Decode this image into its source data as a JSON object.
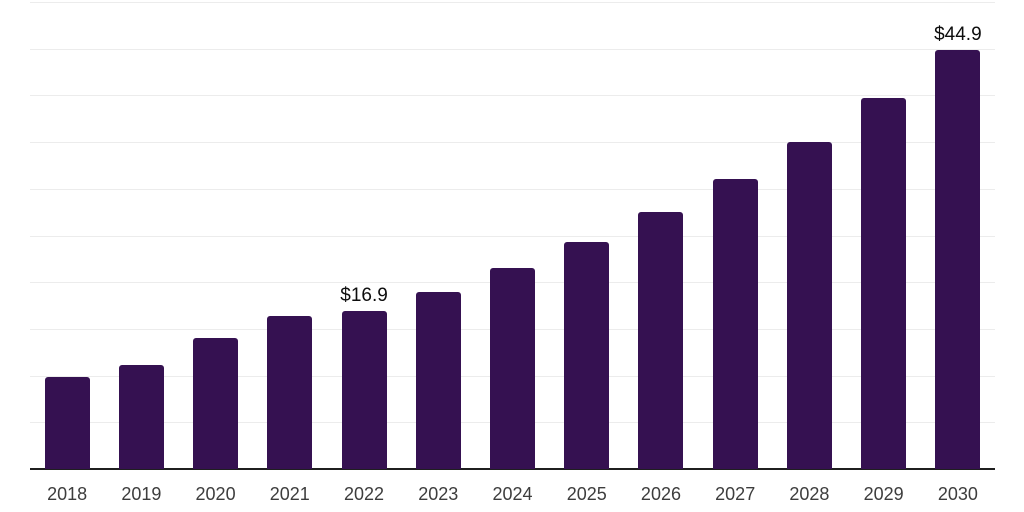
{
  "chart_data": {
    "type": "bar",
    "title": "",
    "xlabel": "",
    "ylabel": "",
    "categories": [
      "2018",
      "2019",
      "2020",
      "2021",
      "2022",
      "2023",
      "2024",
      "2025",
      "2026",
      "2027",
      "2028",
      "2029",
      "2030"
    ],
    "values": [
      9.8,
      11.1,
      14.0,
      16.4,
      16.9,
      18.9,
      21.5,
      24.3,
      27.5,
      31.0,
      35.0,
      39.7,
      44.9
    ],
    "value_labels": [
      {
        "category": "2022",
        "text": "$16.9"
      },
      {
        "category": "2030",
        "text": "$44.9"
      }
    ],
    "ylim": [
      0,
      50
    ],
    "gridline_step": 5,
    "grid": "horizontal-only",
    "y_axis_tick_labels": "none",
    "legend": "none",
    "colors": {
      "bar": "#351151",
      "gridline": "#ececec",
      "axis_line": "#1f1f1f",
      "tick_label": "#3d3d3d",
      "value_label": "#0d0d0d",
      "background": "#ffffff"
    }
  }
}
